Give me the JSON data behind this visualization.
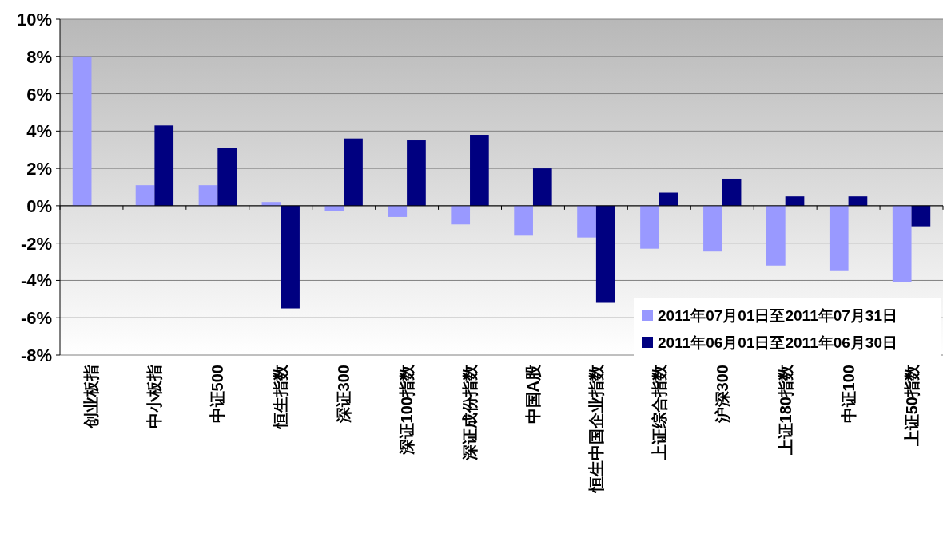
{
  "chart_data": {
    "type": "bar",
    "categories": [
      "创业板指",
      "中小板指",
      "中证500",
      "恒生指数",
      "深证300",
      "深证100指数",
      "深证成份指数",
      "中国A股",
      "恒生中国企业指数",
      "上证综合指数",
      "沪深300",
      "上证180指数",
      "中证100",
      "上证50指数"
    ],
    "series": [
      {
        "name": "2011年07月01日至2011年07月31日",
        "color": "#9999ff",
        "values": [
          8.0,
          1.1,
          1.1,
          0.2,
          -0.3,
          -0.6,
          -1.0,
          -1.6,
          -1.7,
          -2.3,
          -2.45,
          -3.2,
          -3.5,
          -4.1
        ]
      },
      {
        "name": "2011年06月01日至2011年06月30日",
        "color": "#000080",
        "values": [
          null,
          4.3,
          3.1,
          -5.5,
          3.6,
          3.5,
          3.8,
          2.0,
          -5.2,
          0.7,
          1.45,
          0.5,
          0.5,
          -1.1
        ]
      }
    ],
    "ylim": [
      -8,
      10
    ],
    "yticks": [
      {
        "value": -8,
        "label": "-8%"
      },
      {
        "value": -6,
        "label": "-6%"
      },
      {
        "value": -4,
        "label": "-4%"
      },
      {
        "value": -2,
        "label": "-2%"
      },
      {
        "value": 0,
        "label": "0%"
      },
      {
        "value": 2,
        "label": "2%"
      },
      {
        "value": 4,
        "label": "4%"
      },
      {
        "value": 6,
        "label": "6%"
      },
      {
        "value": 8,
        "label": "8%"
      },
      {
        "value": 10,
        "label": "10%"
      }
    ],
    "grid": "y",
    "legend": "bottom right"
  }
}
